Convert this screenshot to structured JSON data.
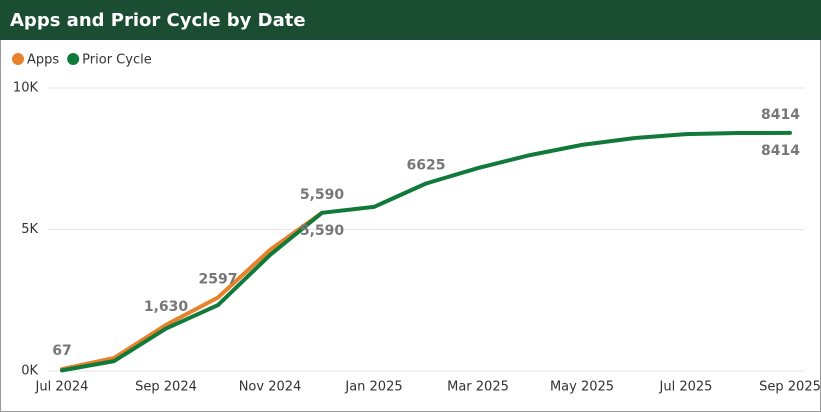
{
  "chart_data": {
    "type": "line",
    "title": "Apps and Prior Cycle by Date",
    "x": [
      "2024-07",
      "2024-08",
      "2024-09",
      "2024-10",
      "2024-11",
      "2024-12",
      "2025-01",
      "2025-02",
      "2025-03",
      "2025-04",
      "2025-05",
      "2025-06",
      "2025-07",
      "2025-08",
      "2025-09"
    ],
    "series": [
      {
        "name": "Apps",
        "color": "#e8802c",
        "values": [
          67,
          460,
          1630,
          2597,
          4280,
          5590,
          null,
          null,
          null,
          null,
          null,
          null,
          null,
          null,
          null
        ],
        "value_labels": [
          "67",
          null,
          "1,630",
          "2597",
          null,
          "5,590",
          null,
          null,
          null,
          null,
          null,
          null,
          null,
          null,
          null
        ]
      },
      {
        "name": "Prior Cycle",
        "color": "#117a3a",
        "values": [
          20,
          350,
          1500,
          2330,
          4100,
          5590,
          5800,
          6625,
          7170,
          7630,
          7990,
          8230,
          8370,
          8410,
          8414
        ],
        "value_labels": [
          null,
          null,
          null,
          null,
          null,
          "5,590",
          null,
          "6625",
          null,
          null,
          null,
          null,
          null,
          null,
          "8414"
        ]
      }
    ],
    "xlim": [
      "2024-07",
      "2025-09"
    ],
    "xticks": [
      {
        "value": "2024-07",
        "label": "Jul 2024"
      },
      {
        "value": "2024-09",
        "label": "Sep 2024"
      },
      {
        "value": "2024-11",
        "label": "Nov 2024"
      },
      {
        "value": "2025-01",
        "label": "Jan 2025"
      },
      {
        "value": "2025-03",
        "label": "Mar 2025"
      },
      {
        "value": "2025-05",
        "label": "May 2025"
      },
      {
        "value": "2025-07",
        "label": "Jul 2025"
      },
      {
        "value": "2025-09",
        "label": "Sep 2025"
      }
    ],
    "ylim": [
      0,
      10000
    ],
    "yticks": [
      {
        "value": 0,
        "label": "0K"
      },
      {
        "value": 5000,
        "label": "5K"
      },
      {
        "value": 10000,
        "label": "10K"
      }
    ],
    "grid": true,
    "legend": "top-left"
  }
}
